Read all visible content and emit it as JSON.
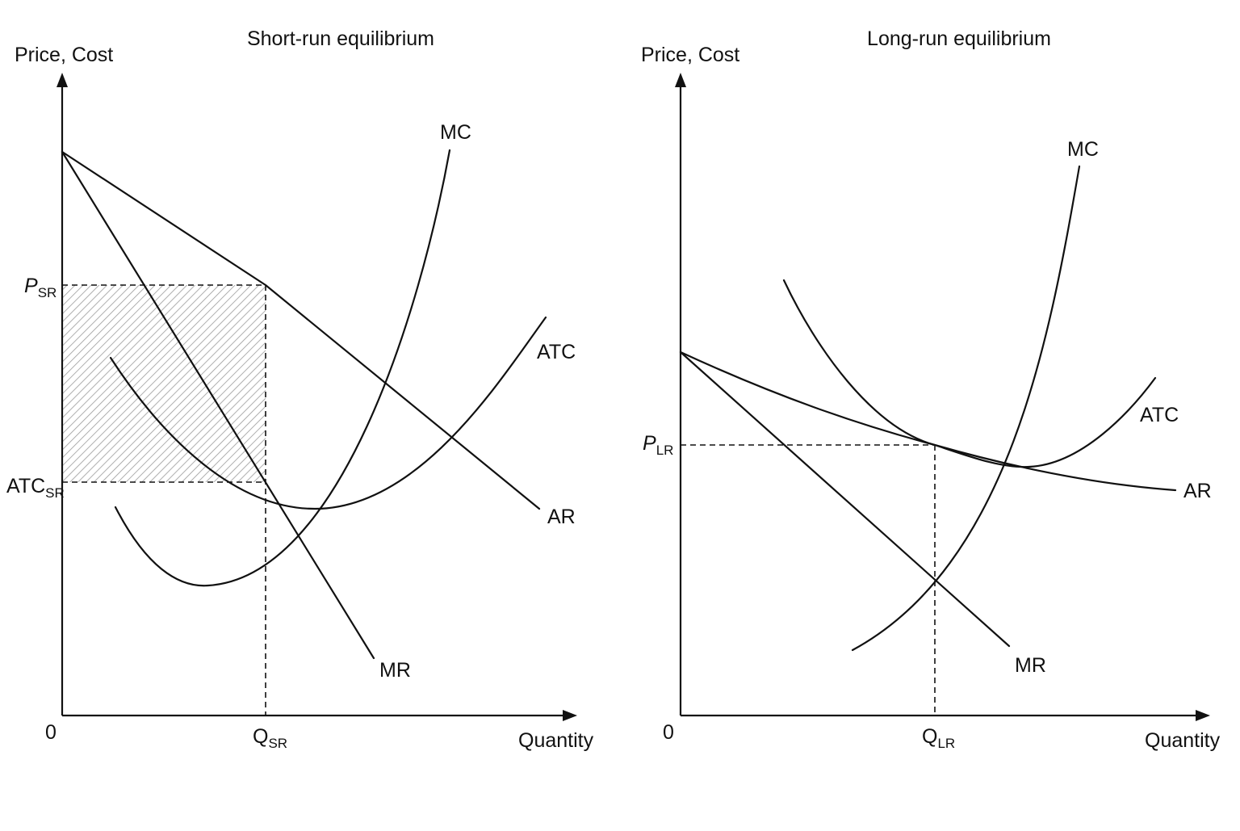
{
  "panels": {
    "short_run": {
      "title": "Short-run equilibrium",
      "y_axis_label": "Price, Cost",
      "x_axis_label": "Quantity",
      "origin_label": "0",
      "curves": {
        "mc": "MC",
        "atc": "ATC",
        "ar": "AR",
        "mr": "MR"
      },
      "price_marker": {
        "main": "P",
        "sub": "SR"
      },
      "cost_marker": {
        "main": "ATC",
        "sub": "SR"
      },
      "quantity_marker": {
        "main": "Q",
        "sub": "SR"
      }
    },
    "long_run": {
      "title": "Long-run equilibrium",
      "y_axis_label": "Price, Cost",
      "x_axis_label": "Quantity",
      "origin_label": "0",
      "curves": {
        "mc": "MC",
        "atc": "ATC",
        "ar": "AR",
        "mr": "MR"
      },
      "price_marker": {
        "main": "P",
        "sub": "LR"
      },
      "quantity_marker": {
        "main": "Q",
        "sub": "LR"
      }
    }
  },
  "colors": {
    "ink": "#111111",
    "profit_hatch": "#9a9a9a"
  }
}
